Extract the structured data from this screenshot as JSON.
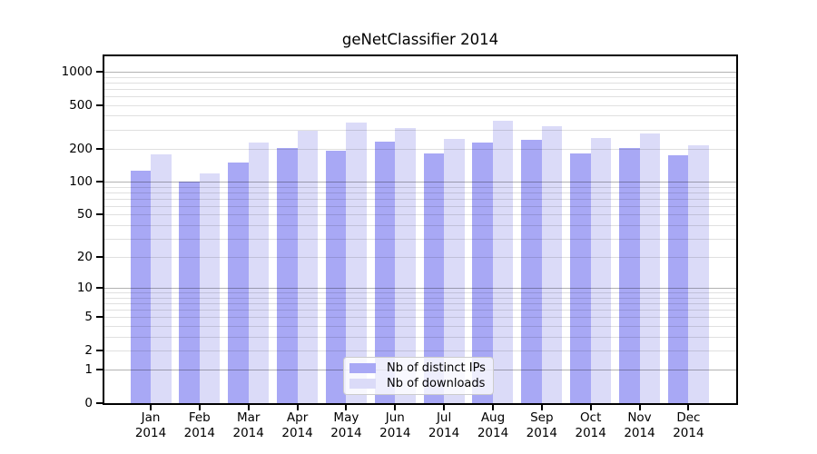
{
  "window": {
    "background": "#ffffff"
  },
  "chart_data": {
    "type": "bar",
    "title": "geNetClassifier 2014",
    "year": "2014",
    "months": [
      "Jan",
      "Feb",
      "Mar",
      "Apr",
      "May",
      "Jun",
      "Jul",
      "Aug",
      "Sep",
      "Oct",
      "Nov",
      "Dec"
    ],
    "categories": [
      "Jan 2014",
      "Feb 2014",
      "Mar 2014",
      "Apr 2014",
      "May 2014",
      "Jun 2014",
      "Jul 2014",
      "Aug 2014",
      "Sep 2014",
      "Oct 2014",
      "Nov 2014",
      "Dec 2014"
    ],
    "series": [
      {
        "name": "Nb of distinct IPs",
        "color": "#a8a8f5",
        "values": [
          126,
          100,
          151,
          203,
          193,
          232,
          181,
          230,
          242,
          183,
          203,
          173
        ]
      },
      {
        "name": "Nb of downloads",
        "color": "#dbdbf8",
        "values": [
          178,
          120,
          230,
          290,
          347,
          308,
          244,
          357,
          320,
          253,
          278,
          216
        ]
      }
    ],
    "xlabel": "",
    "ylabel": "",
    "yscale": "log1p",
    "yticks": [
      1000,
      500,
      200,
      100,
      50,
      20,
      10,
      5,
      2,
      1,
      0
    ],
    "ylim": [
      0,
      1380
    ],
    "grid": {
      "on": true,
      "major": [
        1,
        10,
        100,
        1000
      ],
      "minor": [
        2,
        3,
        4,
        5,
        6,
        7,
        8,
        9,
        20,
        30,
        40,
        50,
        60,
        70,
        80,
        90,
        200,
        300,
        400,
        500,
        600,
        700,
        800,
        900
      ]
    },
    "legend": {
      "position": "lower-center-inside"
    },
    "colors": {
      "spine": "#000000",
      "grid_major": "rgba(0,0,0,0.30)",
      "grid_minor": "rgba(0,0,0,0.12)",
      "text": "#000000",
      "legend_border": "#cccccc",
      "legend_bg": "rgba(255,255,255,0.8)"
    }
  }
}
